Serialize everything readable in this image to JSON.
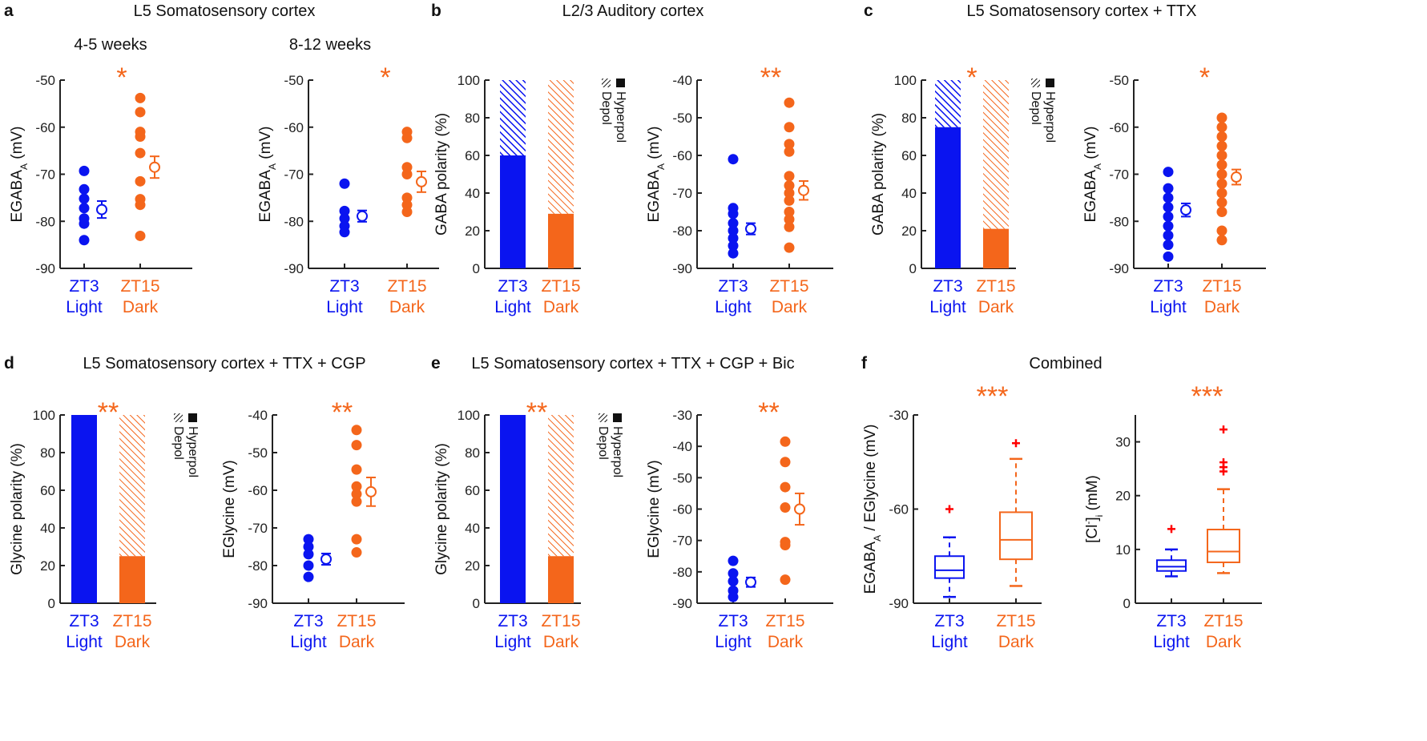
{
  "colors": {
    "light": "#0a14f0",
    "dark": "#f4661b",
    "outlier": "#ff0000",
    "axis": "#222222"
  },
  "panels": [
    {
      "letter": "a",
      "title": "L5 Somatosensory cortex"
    },
    {
      "letter": "b",
      "title": "L2/3 Auditory cortex"
    },
    {
      "letter": "c",
      "title": "L5 Somatosensory cortex + TTX"
    },
    {
      "letter": "d",
      "title": "L5 Somatosensory cortex + TTX + CGP"
    },
    {
      "letter": "e",
      "title": "L5 Somatosensory cortex + TTX + CGP + Bic"
    },
    {
      "letter": "f",
      "title": "Combined"
    }
  ],
  "legend": {
    "depol": "Depol",
    "hyperpol": "Hyperpol"
  },
  "categories": [
    {
      "top": "ZT3",
      "bottom": "Light"
    },
    {
      "top": "ZT15",
      "bottom": "Dark"
    }
  ],
  "chart_data": [
    {
      "panel": "a",
      "type": "scatter",
      "subtitle": "4-5 weeks",
      "significance": "*",
      "ylabel": [
        {
          "text": "EGABA",
          "style": ""
        },
        {
          "text": "A",
          "style": "sub"
        },
        {
          "text": " (mV)",
          "style": ""
        }
      ],
      "ylim": [
        -90,
        -50
      ],
      "yticks": [
        -90,
        -80,
        -70,
        -60,
        -50
      ],
      "series": [
        {
          "group": "ZT3 Light",
          "values": [
            -69.3,
            -73.2,
            -75.2,
            -77.2,
            -79.4,
            -80.5,
            -84.0
          ],
          "mean": -77.5,
          "sem": 1.8
        },
        {
          "group": "ZT15 Dark",
          "values": [
            -53.8,
            -56.8,
            -61.0,
            -62.0,
            -65.5,
            -71.5,
            -75.3,
            -76.5,
            -83.1
          ],
          "mean": -68.5,
          "sem": 2.3
        }
      ]
    },
    {
      "panel": "a",
      "type": "scatter",
      "subtitle": "8-12 weeks",
      "significance": "*",
      "ylabel": [
        {
          "text": "EGABA",
          "style": ""
        },
        {
          "text": "A",
          "style": "sub"
        },
        {
          "text": " (mV)",
          "style": ""
        }
      ],
      "ylim": [
        -90,
        -50
      ],
      "yticks": [
        -90,
        -80,
        -70,
        -60,
        -50
      ],
      "series": [
        {
          "group": "ZT3 Light",
          "values": [
            -72.0,
            -77.8,
            -79.4,
            -81.0,
            -82.3
          ],
          "mean": -78.9,
          "sem": 1.2
        },
        {
          "group": "ZT15 Dark",
          "values": [
            -61.0,
            -62.3,
            -68.5,
            -70.0,
            -75.0,
            -76.5,
            -78.0
          ],
          "mean": -71.6,
          "sem": 2.2
        }
      ]
    },
    {
      "panel": "b",
      "type": "bar",
      "significance": "",
      "ylabel": [
        {
          "text": "GABA polarity (%)",
          "style": ""
        }
      ],
      "ylim": [
        0,
        100
      ],
      "yticks": [
        0,
        20,
        40,
        60,
        80,
        100
      ],
      "series": [
        {
          "name": "Hyperpol",
          "values": [
            60,
            29
          ]
        },
        {
          "name": "Depol",
          "values": [
            40,
            71
          ]
        }
      ]
    },
    {
      "panel": "b",
      "type": "scatter",
      "significance": "**",
      "ylabel": [
        {
          "text": "EGABA",
          "style": ""
        },
        {
          "text": "A",
          "style": "sub"
        },
        {
          "text": " (mV)",
          "style": ""
        }
      ],
      "ylim": [
        -90,
        -40
      ],
      "yticks": [
        -90,
        -80,
        -70,
        -60,
        -50,
        -40
      ],
      "series": [
        {
          "group": "ZT3 Light",
          "values": [
            -61.0,
            -74.0,
            -75.5,
            -78.0,
            -80.0,
            -82.0,
            -84.0,
            -86.0
          ],
          "mean": -79.5,
          "sem": 1.5
        },
        {
          "group": "ZT15 Dark",
          "values": [
            -46.0,
            -52.5,
            -57.0,
            -59.0,
            -65.5,
            -68.0,
            -70.0,
            -72.0,
            -75.0,
            -77.0,
            -79.0,
            -84.5
          ],
          "mean": -69.3,
          "sem": 2.5
        }
      ]
    },
    {
      "panel": "c",
      "type": "bar",
      "significance": "*",
      "ylabel": [
        {
          "text": "GABA polarity (%)",
          "style": ""
        }
      ],
      "ylim": [
        0,
        100
      ],
      "yticks": [
        0,
        20,
        40,
        60,
        80,
        100
      ],
      "series": [
        {
          "name": "Hyperpol",
          "values": [
            75,
            21
          ]
        },
        {
          "name": "Depol",
          "values": [
            25,
            79
          ]
        }
      ]
    },
    {
      "panel": "c",
      "type": "scatter",
      "significance": "*",
      "ylabel": [
        {
          "text": "EGABA",
          "style": ""
        },
        {
          "text": "A",
          "style": "sub"
        },
        {
          "text": " (mV)",
          "style": ""
        }
      ],
      "ylim": [
        -90,
        -50
      ],
      "yticks": [
        -90,
        -80,
        -70,
        -60,
        -50
      ],
      "series": [
        {
          "group": "ZT3 Light",
          "values": [
            -69.5,
            -73.0,
            -75.0,
            -77.0,
            -79.0,
            -81.0,
            -83.0,
            -85.0,
            -87.5
          ],
          "mean": -77.6,
          "sem": 1.4
        },
        {
          "group": "ZT15 Dark",
          "values": [
            -58.0,
            -60.0,
            -62.0,
            -64.0,
            -66.0,
            -68.0,
            -70.0,
            -72.0,
            -74.0,
            -76.0,
            -78.0,
            -82.0,
            -84.0
          ],
          "mean": -70.6,
          "sem": 1.6
        }
      ]
    },
    {
      "panel": "d",
      "type": "bar",
      "significance": "**",
      "ylabel": [
        {
          "text": "Glycine polarity (%)",
          "style": ""
        }
      ],
      "ylim": [
        0,
        100
      ],
      "yticks": [
        0,
        20,
        40,
        60,
        80,
        100
      ],
      "series": [
        {
          "name": "Hyperpol",
          "values": [
            100,
            25
          ]
        },
        {
          "name": "Depol",
          "values": [
            0,
            75
          ]
        }
      ]
    },
    {
      "panel": "d",
      "type": "scatter",
      "significance": "**",
      "ylabel": [
        {
          "text": "EGlycine (mV)",
          "style": ""
        }
      ],
      "ylim": [
        -90,
        -40
      ],
      "yticks": [
        -90,
        -80,
        -70,
        -60,
        -50,
        -40
      ],
      "series": [
        {
          "group": "ZT3 Light",
          "values": [
            -73.0,
            -75.0,
            -77.0,
            -80.0,
            -83.0
          ],
          "mean": -78.3,
          "sem": 1.5
        },
        {
          "group": "ZT15 Dark",
          "values": [
            -44.0,
            -48.0,
            -54.5,
            -59.0,
            -61.0,
            -63.0,
            -73.0,
            -76.5
          ],
          "mean": -60.4,
          "sem": 3.8
        }
      ]
    },
    {
      "panel": "e",
      "type": "bar",
      "significance": "**",
      "ylabel": [
        {
          "text": "Glycine polarity (%)",
          "style": ""
        }
      ],
      "ylim": [
        0,
        100
      ],
      "yticks": [
        0,
        20,
        40,
        60,
        80,
        100
      ],
      "series": [
        {
          "name": "Hyperpol",
          "values": [
            100,
            25
          ]
        },
        {
          "name": "Depol",
          "values": [
            0,
            75
          ]
        }
      ]
    },
    {
      "panel": "e",
      "type": "scatter",
      "significance": "**",
      "ylabel": [
        {
          "text": "EGlycine (mV)",
          "style": ""
        }
      ],
      "ylim": [
        -90,
        -30
      ],
      "yticks": [
        -90,
        -80,
        -70,
        -60,
        -50,
        -40,
        -30
      ],
      "series": [
        {
          "group": "ZT3 Light",
          "values": [
            -76.5,
            -80.5,
            -83.0,
            -86.0,
            -88.0
          ],
          "mean": -83.3,
          "sem": 1.5
        },
        {
          "group": "ZT15 Dark",
          "values": [
            -38.5,
            -45.0,
            -53.0,
            -59.5,
            -70.5,
            -71.5,
            -82.5
          ],
          "mean": -60.0,
          "sem": 5.0
        }
      ]
    },
    {
      "panel": "f",
      "type": "box",
      "significance": "***",
      "ylabel": [
        {
          "text": "EGABA",
          "style": ""
        },
        {
          "text": "A",
          "style": "sub"
        },
        {
          "text": " / EGlycine (mV)",
          "style": ""
        }
      ],
      "ylim": [
        -90,
        -30
      ],
      "yticks": [
        -90,
        -60,
        -30
      ],
      "series": [
        {
          "group": "ZT3 Light",
          "whisker_low": -88,
          "q1": -82,
          "median": -79.5,
          "q3": -75,
          "whisker_high": -69,
          "outliers": [
            -60
          ]
        },
        {
          "group": "ZT15 Dark",
          "whisker_low": -84.5,
          "q1": -76,
          "median": -69.8,
          "q3": -61,
          "whisker_high": -44,
          "outliers": [
            -39
          ]
        }
      ]
    },
    {
      "panel": "f",
      "type": "box",
      "significance": "***",
      "ylabel": [
        {
          "text": "[Cl",
          "style": ""
        },
        {
          "text": "-",
          "style": "sup"
        },
        {
          "text": "]",
          "style": ""
        },
        {
          "text": "i",
          "style": "sub"
        },
        {
          "text": " (mM)",
          "style": ""
        }
      ],
      "ylim": [
        0,
        35
      ],
      "yticks": [
        0,
        10,
        20,
        30
      ],
      "series": [
        {
          "group": "ZT3 Light",
          "whisker_low": 5,
          "q1": 6,
          "median": 6.8,
          "q3": 8,
          "whisker_high": 10,
          "outliers": [
            13.8
          ]
        },
        {
          "group": "ZT15 Dark",
          "whisker_low": 5.6,
          "q1": 7.6,
          "median": 9.6,
          "q3": 13.7,
          "whisker_high": 21.2,
          "outliers": [
            24.5,
            25.3,
            26.2,
            32.3
          ]
        }
      ]
    }
  ]
}
